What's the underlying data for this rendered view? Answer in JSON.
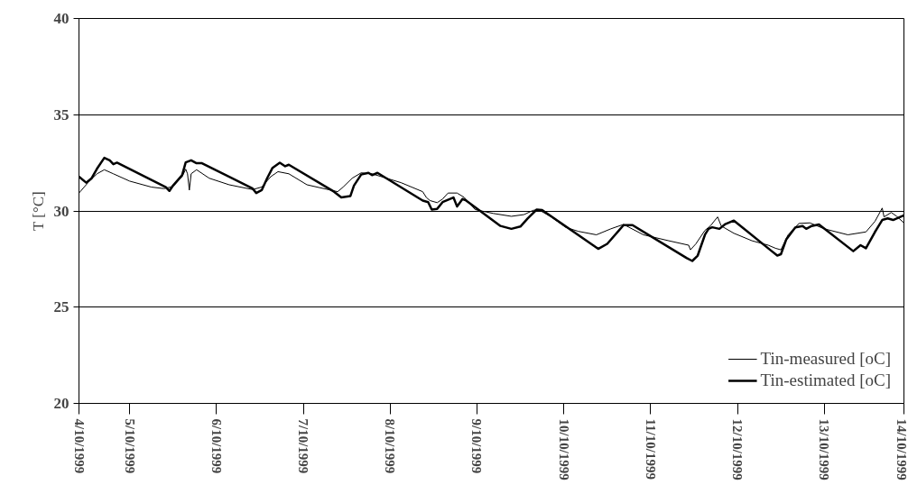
{
  "chart_data": {
    "type": "line",
    "ylabel": "T [°C]",
    "xlim": [
      "1999-10-04T10:00",
      "1999-10-13T22:00"
    ],
    "xticks": [
      {
        "value": "1999-10-04T10:00",
        "label": "4/10/1999"
      },
      {
        "value": "1999-10-05T00:00",
        "label": "5/10/1999"
      },
      {
        "value": "1999-10-06T00:00",
        "label": "6/10/1999"
      },
      {
        "value": "1999-10-07T00:00",
        "label": "7/10/1999"
      },
      {
        "value": "1999-10-08T00:00",
        "label": "8/10/1999"
      },
      {
        "value": "1999-10-09T00:00",
        "label": "9/10/1999"
      },
      {
        "value": "1999-10-10T00:00",
        "label": "10/10/1999"
      },
      {
        "value": "1999-10-11T00:00",
        "label": "11/10/1999"
      },
      {
        "value": "1999-10-12T00:00",
        "label": "12/10/1999"
      },
      {
        "value": "1999-10-13T00:00",
        "label": "13/10/1999"
      },
      {
        "value": "1999-10-13T22:00",
        "label": "14/10/1999"
      }
    ],
    "ylim": [
      20,
      40
    ],
    "yticks": [
      20,
      25,
      30,
      35,
      40
    ],
    "grid": "y",
    "legend": "bottom right",
    "series": [
      {
        "name": "Tin-measured [oC]",
        "color": "#000000",
        "x": [
          "1999-10-04T10:00",
          "1999-10-04T12:30",
          "1999-10-04T15:00",
          "1999-10-04T17:00",
          "1999-10-04T19:30",
          "1999-10-05T00:00",
          "1999-10-05T06:00",
          "1999-10-05T09:30",
          "1999-10-05T12:00",
          "1999-10-05T14:30",
          "1999-10-05T15:30",
          "1999-10-05T16:00",
          "1999-10-05T16:30",
          "1999-10-05T17:00",
          "1999-10-05T18:30",
          "1999-10-05T22:00",
          "1999-10-06T03:30",
          "1999-10-06T10:00",
          "1999-10-06T12:30",
          "1999-10-06T15:00",
          "1999-10-06T17:00",
          "1999-10-06T20:00",
          "1999-10-07T01:00",
          "1999-10-07T04:30",
          "1999-10-07T09:30",
          "1999-10-07T11:00",
          "1999-10-07T13:30",
          "1999-10-07T16:00",
          "1999-10-07T19:00",
          "1999-10-07T23:00",
          "1999-10-08T03:00",
          "1999-10-08T09:00",
          "1999-10-08T10:00",
          "1999-10-08T11:00",
          "1999-10-08T13:00",
          "1999-10-08T14:30",
          "1999-10-08T16:00",
          "1999-10-08T18:30",
          "1999-10-08T20:30",
          "1999-10-08T23:30",
          "1999-10-09T04:30",
          "1999-10-09T09:30",
          "1999-10-09T13:00",
          "1999-10-09T15:30",
          "1999-10-09T17:00",
          "1999-10-09T20:30",
          "1999-10-10T00:30",
          "1999-10-10T04:00",
          "1999-10-10T09:00",
          "1999-10-10T13:00",
          "1999-10-10T16:30",
          "1999-10-10T22:00",
          "1999-10-11T05:00",
          "1999-10-11T10:30",
          "1999-10-11T11:00",
          "1999-10-11T12:30",
          "1999-10-11T15:00",
          "1999-10-11T16:30",
          "1999-10-11T18:30",
          "1999-10-11T19:30",
          "1999-10-11T23:00",
          "1999-10-12T04:00",
          "1999-10-12T08:30",
          "1999-10-12T10:30",
          "1999-10-12T12:00",
          "1999-10-12T14:00",
          "1999-10-12T17:00",
          "1999-10-12T20:00",
          "1999-10-13T00:00",
          "1999-10-13T06:30",
          "1999-10-13T11:30",
          "1999-10-13T14:00",
          "1999-10-13T16:00",
          "1999-10-13T16:30",
          "1999-10-13T18:30",
          "1999-10-13T20:00",
          "1999-10-13T22:00"
        ],
        "values": [
          30.93,
          31.47,
          31.93,
          32.14,
          31.93,
          31.55,
          31.24,
          31.16,
          31.27,
          31.78,
          32.17,
          31.93,
          31.08,
          31.93,
          32.14,
          31.7,
          31.36,
          31.11,
          31.24,
          31.78,
          32.04,
          31.93,
          31.36,
          31.21,
          31.0,
          31.24,
          31.7,
          31.98,
          31.93,
          31.7,
          31.47,
          31.0,
          30.7,
          30.54,
          30.43,
          30.62,
          30.93,
          30.93,
          30.7,
          30.07,
          29.87,
          29.72,
          29.81,
          30.03,
          30.07,
          29.69,
          29.15,
          28.94,
          28.76,
          29.07,
          29.3,
          28.76,
          28.45,
          28.22,
          27.98,
          28.29,
          28.99,
          29.22,
          29.69,
          29.22,
          28.84,
          28.45,
          28.22,
          28.06,
          27.98,
          28.76,
          29.35,
          29.38,
          29.07,
          28.76,
          28.91,
          29.46,
          30.15,
          29.69,
          29.92,
          29.72,
          29.38
        ]
      },
      {
        "name": "Tin-estimated [oC]",
        "color": "#000000",
        "x": [
          "1999-10-04T10:00",
          "1999-10-04T12:00",
          "1999-10-04T13:30",
          "1999-10-04T15:00",
          "1999-10-04T17:00",
          "1999-10-04T18:30",
          "1999-10-04T19:30",
          "1999-10-04T20:30",
          "1999-10-05T10:00",
          "1999-10-05T11:00",
          "1999-10-05T12:00",
          "1999-10-05T14:30",
          "1999-10-05T15:30",
          "1999-10-05T17:00",
          "1999-10-05T18:30",
          "1999-10-05T20:00",
          "1999-10-06T10:00",
          "1999-10-06T11:00",
          "1999-10-06T12:30",
          "1999-10-06T14:00",
          "1999-10-06T15:30",
          "1999-10-06T17:30",
          "1999-10-06T19:00",
          "1999-10-06T20:00",
          "1999-10-07T08:30",
          "1999-10-07T10:30",
          "1999-10-07T13:00",
          "1999-10-07T14:00",
          "1999-10-07T16:00",
          "1999-10-07T18:00",
          "1999-10-07T19:00",
          "1999-10-07T20:30",
          "1999-10-08T09:00",
          "1999-10-08T10:30",
          "1999-10-08T11:30",
          "1999-10-08T13:00",
          "1999-10-08T14:30",
          "1999-10-08T17:30",
          "1999-10-08T18:30",
          "1999-10-08T20:00",
          "1999-10-08T21:00",
          "1999-10-09T06:30",
          "1999-10-09T09:30",
          "1999-10-09T12:00",
          "1999-10-09T14:00",
          "1999-10-09T16:30",
          "1999-10-09T18:00",
          "1999-10-10T09:30",
          "1999-10-10T12:00",
          "1999-10-10T16:30",
          "1999-10-10T19:00",
          "1999-10-11T10:00",
          "1999-10-11T11:30",
          "1999-10-11T13:00",
          "1999-10-11T15:00",
          "1999-10-11T16:00",
          "1999-10-11T17:00",
          "1999-10-11T19:00",
          "1999-10-11T20:30",
          "1999-10-11T23:00",
          "1999-10-12T09:00",
          "1999-10-12T11:00",
          "1999-10-12T12:00",
          "1999-10-12T13:30",
          "1999-10-12T16:00",
          "1999-10-12T18:00",
          "1999-10-12T19:00",
          "1999-10-12T20:30",
          "1999-10-12T22:30",
          "1999-10-13T08:00",
          "1999-10-13T10:00",
          "1999-10-13T11:30",
          "1999-10-13T14:00",
          "1999-10-13T16:00",
          "1999-10-13T17:30",
          "1999-10-13T19:00",
          "1999-10-13T22:00"
        ],
        "values": [
          31.78,
          31.47,
          31.7,
          32.2,
          32.76,
          32.63,
          32.43,
          32.51,
          31.24,
          31.04,
          31.32,
          31.86,
          32.52,
          32.63,
          32.48,
          32.48,
          31.16,
          30.93,
          31.08,
          31.7,
          32.24,
          32.51,
          32.32,
          32.4,
          31.0,
          30.7,
          30.77,
          31.32,
          31.89,
          31.98,
          31.86,
          31.98,
          30.54,
          30.46,
          30.07,
          30.11,
          30.46,
          30.7,
          30.23,
          30.62,
          30.54,
          29.22,
          29.07,
          29.19,
          29.61,
          30.07,
          30.05,
          28.03,
          28.29,
          29.26,
          29.26,
          27.55,
          27.4,
          27.68,
          28.76,
          29.07,
          29.15,
          29.07,
          29.3,
          29.5,
          27.98,
          27.68,
          27.75,
          28.53,
          29.15,
          29.22,
          29.07,
          29.22,
          29.3,
          27.91,
          28.22,
          28.06,
          28.91,
          29.53,
          29.61,
          29.53,
          29.77
        ]
      }
    ]
  }
}
